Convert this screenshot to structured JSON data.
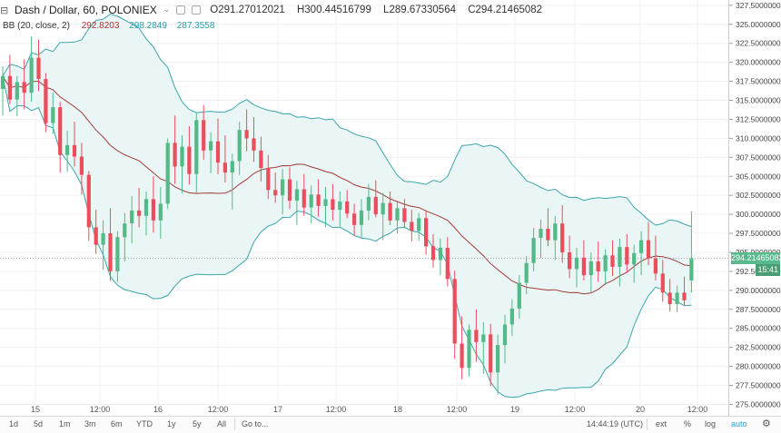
{
  "header": {
    "collapse_icon": "collapse-icon",
    "symbol": "Dash / Dollar, 60, POLONIEX",
    "open": "O291.27012021",
    "high": "H300.44516799",
    "low": "L289.67330564",
    "close": "C294.21465082"
  },
  "indicator": {
    "label": "BB (20, close, 2)",
    "basis": "292.8203",
    "upper": "298.2849",
    "lower": "287.3558"
  },
  "price_axis": {
    "ticks": [
      "327.50000000",
      "325.00000000",
      "322.50000000",
      "320.00000000",
      "317.50000000",
      "315.00000000",
      "312.50000000",
      "310.00000000",
      "307.50000000",
      "305.00000000",
      "302.50000000",
      "300.00000000",
      "297.50000000",
      "295.00000000",
      "292.50000000",
      "290.00000000",
      "287.50000000",
      "285.00000000",
      "282.50000000",
      "280.00000000",
      "277.50000000",
      "275.00000000"
    ],
    "last_price": "294.21465082",
    "countdown": "15:41"
  },
  "time_axis": {
    "labels": [
      "15",
      "12:00",
      "16",
      "12:00",
      "17",
      "12:00",
      "18",
      "12:00",
      "19",
      "12:00",
      "20",
      "12:00"
    ]
  },
  "toolbar": {
    "timeframes": [
      "1d",
      "5d",
      "1m",
      "3m",
      "6m",
      "YTD",
      "1y",
      "5y",
      "All"
    ],
    "goto": "Go to...",
    "time_readout": "14:44:19 (UTC)",
    "ext": "ext",
    "percent": "%",
    "log": "log",
    "auto": "auto",
    "settings_icon": "gear-icon"
  },
  "colors": {
    "up": "#53b987",
    "down": "#eb4d5c",
    "basis": "#a33a3a",
    "band": "#3ba5ab",
    "fill": "#eaf6f6",
    "last_price_bg": "#5ab88d",
    "countdown_bg": "#4a9e76",
    "crosshair": "#9aa3ad",
    "auto_active": "#2c9dd8"
  },
  "chart_data": {
    "type": "candlestick",
    "symbol": "Dash / Dollar",
    "interval": "60",
    "exchange": "POLONIEX",
    "ylim": [
      273.5,
      328.2
    ],
    "candles": [
      {
        "x": 0,
        "o": 316.5,
        "h": 319.5,
        "l": 313.0,
        "c": 318.2
      },
      {
        "x": 1,
        "o": 318.2,
        "h": 321.0,
        "l": 314.5,
        "c": 315.1
      },
      {
        "x": 2,
        "o": 315.1,
        "h": 318.2,
        "l": 312.9,
        "c": 317.4
      },
      {
        "x": 3,
        "o": 317.4,
        "h": 320.4,
        "l": 313.8,
        "c": 316.0
      },
      {
        "x": 4,
        "o": 316.0,
        "h": 323.4,
        "l": 314.8,
        "c": 320.6
      },
      {
        "x": 5,
        "o": 320.6,
        "h": 323.0,
        "l": 316.2,
        "c": 317.8
      },
      {
        "x": 6,
        "o": 317.8,
        "h": 318.6,
        "l": 310.8,
        "c": 312.0
      },
      {
        "x": 7,
        "o": 312.0,
        "h": 316.0,
        "l": 310.6,
        "c": 314.1
      },
      {
        "x": 8,
        "o": 314.1,
        "h": 314.8,
        "l": 305.5,
        "c": 307.8
      },
      {
        "x": 9,
        "o": 307.8,
        "h": 311.0,
        "l": 305.6,
        "c": 309.1
      },
      {
        "x": 10,
        "o": 309.1,
        "h": 312.2,
        "l": 306.3,
        "c": 307.6
      },
      {
        "x": 11,
        "o": 307.6,
        "h": 309.4,
        "l": 302.6,
        "c": 305.2
      },
      {
        "x": 12,
        "o": 305.2,
        "h": 305.7,
        "l": 296.5,
        "c": 298.3
      },
      {
        "x": 13,
        "o": 298.3,
        "h": 300.6,
        "l": 294.8,
        "c": 296.0
      },
      {
        "x": 14,
        "o": 296.0,
        "h": 299.2,
        "l": 292.7,
        "c": 297.5
      },
      {
        "x": 15,
        "o": 297.5,
        "h": 300.8,
        "l": 291.3,
        "c": 292.5
      },
      {
        "x": 16,
        "o": 292.5,
        "h": 297.8,
        "l": 291.1,
        "c": 297.0
      },
      {
        "x": 17,
        "o": 297.0,
        "h": 300.2,
        "l": 293.8,
        "c": 298.8
      },
      {
        "x": 18,
        "o": 298.8,
        "h": 302.4,
        "l": 296.2,
        "c": 300.5
      },
      {
        "x": 19,
        "o": 300.5,
        "h": 303.5,
        "l": 298.3,
        "c": 299.8
      },
      {
        "x": 20,
        "o": 299.8,
        "h": 303.0,
        "l": 297.2,
        "c": 302.0
      },
      {
        "x": 21,
        "o": 302.0,
        "h": 305.0,
        "l": 297.6,
        "c": 299.2
      },
      {
        "x": 22,
        "o": 299.2,
        "h": 303.6,
        "l": 296.8,
        "c": 301.4
      },
      {
        "x": 23,
        "o": 301.4,
        "h": 310.0,
        "l": 300.7,
        "c": 309.4
      },
      {
        "x": 24,
        "o": 309.4,
        "h": 313.0,
        "l": 304.0,
        "c": 306.3
      },
      {
        "x": 25,
        "o": 306.3,
        "h": 310.4,
        "l": 302.8,
        "c": 308.9
      },
      {
        "x": 26,
        "o": 308.9,
        "h": 311.6,
        "l": 303.9,
        "c": 305.3
      },
      {
        "x": 27,
        "o": 305.3,
        "h": 313.3,
        "l": 302.8,
        "c": 312.4
      },
      {
        "x": 28,
        "o": 312.4,
        "h": 314.4,
        "l": 307.2,
        "c": 308.4
      },
      {
        "x": 29,
        "o": 308.4,
        "h": 310.8,
        "l": 305.4,
        "c": 309.6
      },
      {
        "x": 30,
        "o": 309.6,
        "h": 312.6,
        "l": 305.3,
        "c": 306.8
      },
      {
        "x": 31,
        "o": 306.8,
        "h": 310.4,
        "l": 304.2,
        "c": 305.5
      },
      {
        "x": 32,
        "o": 305.5,
        "h": 308.0,
        "l": 300.6,
        "c": 307.0
      },
      {
        "x": 33,
        "o": 307.0,
        "h": 312.2,
        "l": 305.2,
        "c": 311.1
      },
      {
        "x": 34,
        "o": 311.1,
        "h": 313.8,
        "l": 308.3,
        "c": 310.0
      },
      {
        "x": 35,
        "o": 310.0,
        "h": 312.8,
        "l": 306.9,
        "c": 308.4
      },
      {
        "x": 36,
        "o": 308.4,
        "h": 310.2,
        "l": 304.3,
        "c": 306.1
      },
      {
        "x": 37,
        "o": 306.1,
        "h": 307.8,
        "l": 302.0,
        "c": 303.2
      },
      {
        "x": 38,
        "o": 303.2,
        "h": 305.5,
        "l": 301.5,
        "c": 302.5
      },
      {
        "x": 39,
        "o": 302.5,
        "h": 306.0,
        "l": 300.0,
        "c": 304.6
      },
      {
        "x": 40,
        "o": 304.6,
        "h": 306.2,
        "l": 300.7,
        "c": 301.8
      },
      {
        "x": 41,
        "o": 301.8,
        "h": 304.4,
        "l": 298.6,
        "c": 303.3
      },
      {
        "x": 42,
        "o": 303.3,
        "h": 305.3,
        "l": 299.8,
        "c": 300.9
      },
      {
        "x": 43,
        "o": 300.9,
        "h": 303.8,
        "l": 298.8,
        "c": 302.6
      },
      {
        "x": 44,
        "o": 302.6,
        "h": 304.6,
        "l": 299.7,
        "c": 301.1
      },
      {
        "x": 45,
        "o": 301.1,
        "h": 303.6,
        "l": 298.3,
        "c": 302.0
      },
      {
        "x": 46,
        "o": 302.0,
        "h": 304.0,
        "l": 299.2,
        "c": 300.6
      },
      {
        "x": 47,
        "o": 300.6,
        "h": 303.0,
        "l": 298.4,
        "c": 301.7
      },
      {
        "x": 48,
        "o": 301.7,
        "h": 303.2,
        "l": 299.5,
        "c": 300.1
      },
      {
        "x": 49,
        "o": 300.1,
        "h": 301.4,
        "l": 297.2,
        "c": 298.6
      },
      {
        "x": 50,
        "o": 298.6,
        "h": 302.0,
        "l": 296.9,
        "c": 300.5
      },
      {
        "x": 51,
        "o": 300.5,
        "h": 304.0,
        "l": 299.2,
        "c": 302.3
      },
      {
        "x": 52,
        "o": 302.3,
        "h": 304.5,
        "l": 299.6,
        "c": 300.0
      },
      {
        "x": 53,
        "o": 300.0,
        "h": 302.8,
        "l": 296.6,
        "c": 301.5
      },
      {
        "x": 54,
        "o": 301.5,
        "h": 303.0,
        "l": 298.6,
        "c": 299.2
      },
      {
        "x": 55,
        "o": 299.2,
        "h": 301.8,
        "l": 297.5,
        "c": 300.8
      },
      {
        "x": 56,
        "o": 300.8,
        "h": 302.0,
        "l": 298.2,
        "c": 299.0
      },
      {
        "x": 57,
        "o": 299.0,
        "h": 300.6,
        "l": 296.4,
        "c": 297.8
      },
      {
        "x": 58,
        "o": 297.8,
        "h": 300.2,
        "l": 296.5,
        "c": 299.5
      },
      {
        "x": 59,
        "o": 299.5,
        "h": 300.4,
        "l": 294.7,
        "c": 295.8
      },
      {
        "x": 60,
        "o": 295.8,
        "h": 297.4,
        "l": 293.0,
        "c": 294.0
      },
      {
        "x": 61,
        "o": 294.0,
        "h": 296.8,
        "l": 292.0,
        "c": 295.6
      },
      {
        "x": 62,
        "o": 295.6,
        "h": 297.0,
        "l": 290.5,
        "c": 291.5
      },
      {
        "x": 63,
        "o": 291.5,
        "h": 292.6,
        "l": 281.0,
        "c": 283.0
      },
      {
        "x": 64,
        "o": 283.0,
        "h": 286.6,
        "l": 278.3,
        "c": 279.8
      },
      {
        "x": 65,
        "o": 279.8,
        "h": 285.5,
        "l": 278.7,
        "c": 284.8
      },
      {
        "x": 66,
        "o": 284.8,
        "h": 287.5,
        "l": 280.6,
        "c": 283.2
      },
      {
        "x": 67,
        "o": 283.2,
        "h": 285.8,
        "l": 279.0,
        "c": 284.2
      },
      {
        "x": 68,
        "o": 284.2,
        "h": 285.6,
        "l": 277.4,
        "c": 279.2
      },
      {
        "x": 69,
        "o": 279.2,
        "h": 284.2,
        "l": 276.3,
        "c": 282.8
      },
      {
        "x": 70,
        "o": 282.8,
        "h": 286.8,
        "l": 280.4,
        "c": 285.5
      },
      {
        "x": 71,
        "o": 285.5,
        "h": 288.8,
        "l": 284.0,
        "c": 287.6
      },
      {
        "x": 72,
        "o": 287.6,
        "h": 292.0,
        "l": 286.3,
        "c": 291.0
      },
      {
        "x": 73,
        "o": 291.0,
        "h": 294.5,
        "l": 289.5,
        "c": 293.6
      },
      {
        "x": 74,
        "o": 293.6,
        "h": 298.2,
        "l": 292.5,
        "c": 296.9
      },
      {
        "x": 75,
        "o": 296.9,
        "h": 299.3,
        "l": 294.3,
        "c": 298.1
      },
      {
        "x": 76,
        "o": 298.1,
        "h": 300.8,
        "l": 295.8,
        "c": 296.6
      },
      {
        "x": 77,
        "o": 296.6,
        "h": 299.8,
        "l": 294.0,
        "c": 298.8
      },
      {
        "x": 78,
        "o": 298.8,
        "h": 301.2,
        "l": 293.6,
        "c": 295.0
      },
      {
        "x": 79,
        "o": 295.0,
        "h": 297.2,
        "l": 291.6,
        "c": 292.8
      },
      {
        "x": 80,
        "o": 292.8,
        "h": 295.6,
        "l": 290.4,
        "c": 294.3
      },
      {
        "x": 81,
        "o": 294.3,
        "h": 296.6,
        "l": 291.3,
        "c": 292.0
      },
      {
        "x": 82,
        "o": 292.0,
        "h": 295.0,
        "l": 289.6,
        "c": 293.8
      },
      {
        "x": 83,
        "o": 293.8,
        "h": 296.4,
        "l": 291.1,
        "c": 292.5
      },
      {
        "x": 84,
        "o": 292.5,
        "h": 295.4,
        "l": 290.7,
        "c": 294.6
      },
      {
        "x": 85,
        "o": 294.6,
        "h": 296.6,
        "l": 291.9,
        "c": 293.1
      },
      {
        "x": 86,
        "o": 293.1,
        "h": 296.8,
        "l": 290.5,
        "c": 295.7
      },
      {
        "x": 87,
        "o": 295.7,
        "h": 297.4,
        "l": 292.3,
        "c": 293.4
      },
      {
        "x": 88,
        "o": 293.4,
        "h": 296.0,
        "l": 291.0,
        "c": 294.9
      },
      {
        "x": 89,
        "o": 294.9,
        "h": 297.8,
        "l": 292.0,
        "c": 296.6
      },
      {
        "x": 90,
        "o": 296.6,
        "h": 299.0,
        "l": 293.3,
        "c": 294.2
      },
      {
        "x": 91,
        "o": 294.2,
        "h": 297.2,
        "l": 291.3,
        "c": 292.2
      },
      {
        "x": 92,
        "o": 292.2,
        "h": 294.0,
        "l": 288.5,
        "c": 289.7
      },
      {
        "x": 93,
        "o": 289.7,
        "h": 291.5,
        "l": 287.2,
        "c": 288.2
      },
      {
        "x": 94,
        "o": 288.2,
        "h": 290.6,
        "l": 287.1,
        "c": 289.7
      },
      {
        "x": 95,
        "o": 289.7,
        "h": 291.8,
        "l": 288.0,
        "c": 288.7
      },
      {
        "x": 96,
        "o": 291.3,
        "h": 300.4,
        "l": 289.7,
        "c": 294.2
      }
    ]
  }
}
